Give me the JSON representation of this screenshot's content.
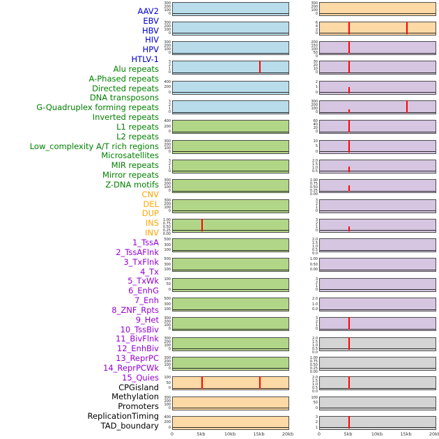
{
  "mark_color": "#ff0000",
  "group_styles": {
    "virus": {
      "label_color": "#0000cd",
      "panel_fill": "#b9dcea"
    },
    "repeat": {
      "label_color": "#008000",
      "panel_fill": "#b2d687"
    },
    "structural_variant": {
      "label_color": "#ffa500",
      "panel_fill": "#fdd9a6"
    },
    "chromatin_state": {
      "label_color": "#9400d3",
      "panel_fill": "#d6c6e1"
    },
    "other": {
      "label_color": "#000000",
      "panel_fill": "#d4d4d4"
    }
  },
  "chart_data": {
    "type": "line",
    "description": "44 genomic feature density tracks over a 20kb window, drawn as small-multiple panels in two columns (column-major: tracks 1-22 left, 23-44 right). Flat black baseline at 0 with red vertical marks where features occur.",
    "columns": 2,
    "rows_per_column": 22,
    "x_range_kb": [
      0,
      20
    ],
    "x_ticks": [
      "0",
      "5kb",
      "10kb",
      "15kb",
      "20kb"
    ],
    "baseline_value": 0,
    "tracks": [
      {
        "label": "AAV2",
        "group": "virus",
        "y_ticks": [
          "300",
          "200",
          "100",
          "0"
        ],
        "marks_kb": []
      },
      {
        "label": "EBV",
        "group": "virus",
        "y_ticks": [
          "300",
          "200",
          "100",
          "0"
        ],
        "marks_kb": []
      },
      {
        "label": "HBV",
        "group": "virus",
        "y_ticks": [
          "300",
          "200",
          "100",
          "0"
        ],
        "marks_kb": []
      },
      {
        "label": "HIV",
        "group": "virus",
        "y_ticks": [
          "3",
          "2",
          "1",
          "0"
        ],
        "marks_kb": [
          {
            "kb": 15,
            "rel_height": 1.0
          }
        ]
      },
      {
        "label": "HPV",
        "group": "virus",
        "y_ticks": [
          "400",
          "200",
          "0"
        ],
        "marks_kb": []
      },
      {
        "label": "HTLV-1",
        "group": "virus",
        "y_ticks": [
          "3",
          "2",
          "1",
          "0"
        ],
        "marks_kb": []
      },
      {
        "label": "Alu repeats",
        "group": "repeat",
        "y_ticks": [
          "400",
          "200",
          "0"
        ],
        "marks_kb": []
      },
      {
        "label": "A-Phased repeats",
        "group": "repeat",
        "y_ticks": [
          "300",
          "200",
          "100",
          "0"
        ],
        "marks_kb": []
      },
      {
        "label": "Directed repeats",
        "group": "repeat",
        "y_ticks": [
          "3",
          "2",
          "1",
          "0"
        ],
        "marks_kb": []
      },
      {
        "label": "DNA transposons",
        "group": "repeat",
        "y_ticks": [
          "300",
          "200",
          "100",
          "0"
        ],
        "marks_kb": []
      },
      {
        "label": "G-Quadruplex forming repeats",
        "group": "repeat",
        "y_ticks": [
          "300",
          "200",
          "100",
          "0"
        ],
        "marks_kb": []
      },
      {
        "label": "Inverted repeats",
        "group": "repeat",
        "y_ticks": [
          "1.00",
          "0.75",
          "0.50",
          "0.25",
          "0.00"
        ],
        "marks_kb": [
          {
            "kb": 5,
            "rel_height": 1.0
          }
        ]
      },
      {
        "label": "L1 repeats",
        "group": "repeat",
        "y_ticks": [
          "500",
          "300",
          "100"
        ],
        "marks_kb": []
      },
      {
        "label": "L2 repeats",
        "group": "repeat",
        "y_ticks": [
          "500",
          "300",
          "100"
        ],
        "marks_kb": []
      },
      {
        "label": "Low_complexity A/T rich regions",
        "group": "repeat",
        "y_ticks": [
          "100",
          "50",
          "0"
        ],
        "marks_kb": []
      },
      {
        "label": "Microsatellites",
        "group": "repeat",
        "y_ticks": [
          "500",
          "300",
          "100"
        ],
        "marks_kb": []
      },
      {
        "label": "MIR repeats",
        "group": "repeat",
        "y_ticks": [
          "300",
          "200",
          "100",
          "0"
        ],
        "marks_kb": []
      },
      {
        "label": "Mirror repeats",
        "group": "repeat",
        "y_ticks": [
          "300",
          "200",
          "100",
          "0"
        ],
        "marks_kb": []
      },
      {
        "label": "Z-DNA motifs",
        "group": "repeat",
        "y_ticks": [
          "300",
          "200",
          "100",
          "0"
        ],
        "marks_kb": []
      },
      {
        "label": "CNV",
        "group": "structural_variant",
        "y_ticks": [
          "100",
          "50",
          "0"
        ],
        "marks_kb": [
          {
            "kb": 5,
            "rel_height": 1.0
          },
          {
            "kb": 15,
            "rel_height": 1.0
          }
        ]
      },
      {
        "label": "DEL",
        "group": "structural_variant",
        "y_ticks": [
          "300",
          "200",
          "100",
          "0"
        ],
        "marks_kb": []
      },
      {
        "label": "DUP",
        "group": "structural_variant",
        "y_ticks": [
          "400",
          "200",
          "0"
        ],
        "marks_kb": []
      },
      {
        "label": "INS",
        "group": "structural_variant",
        "y_ticks": [
          "300",
          "200",
          "100",
          "0"
        ],
        "marks_kb": []
      },
      {
        "label": "INV",
        "group": "structural_variant",
        "y_ticks": [
          "6",
          "4",
          "2",
          "0"
        ],
        "marks_kb": [
          {
            "kb": 5,
            "rel_height": 1.0
          },
          {
            "kb": 15,
            "rel_height": 1.0
          }
        ]
      },
      {
        "label": "1_TssA",
        "group": "chromatin_state",
        "y_ticks": [
          "200",
          "150",
          "100",
          "50",
          "0"
        ],
        "marks_kb": [
          {
            "kb": 5,
            "rel_height": 1.0
          }
        ]
      },
      {
        "label": "2_TssAFlnk",
        "group": "chromatin_state",
        "y_ticks": [
          "30",
          "20",
          "10",
          "0"
        ],
        "marks_kb": [
          {
            "kb": 5,
            "rel_height": 1.0
          }
        ]
      },
      {
        "label": "3_TxFlnk",
        "group": "chromatin_state",
        "y_ticks": [
          "2",
          "1",
          "0"
        ],
        "marks_kb": [
          {
            "kb": 5,
            "rel_height": 0.5
          }
        ]
      },
      {
        "label": "4_Tx",
        "group": "chromatin_state",
        "y_ticks": [
          "300",
          "200",
          "100",
          "0"
        ],
        "marks_kb": [
          {
            "kb": 5,
            "rel_height": 0.3
          },
          {
            "kb": 15,
            "rel_height": 1.0
          }
        ]
      },
      {
        "label": "5_TxWk",
        "group": "chromatin_state",
        "y_ticks": [
          "60",
          "40",
          "20",
          "0"
        ],
        "marks_kb": [
          {
            "kb": 5,
            "rel_height": 1.0
          }
        ]
      },
      {
        "label": "6_EnhG",
        "group": "chromatin_state",
        "y_ticks": [
          "10",
          "5",
          "0"
        ],
        "marks_kb": [
          {
            "kb": 5,
            "rel_height": 1.0
          }
        ]
      },
      {
        "label": "7_Enh",
        "group": "chromatin_state",
        "y_ticks": [
          "2.0",
          "1.5",
          "1.0",
          "0.5"
        ],
        "marks_kb": [
          {
            "kb": 5,
            "rel_height": 0.45
          }
        ]
      },
      {
        "label": "8_ZNF_Rpts",
        "group": "chromatin_state",
        "y_ticks": [
          "1.00",
          "0.75",
          "0.50",
          "0.25",
          "0.00"
        ],
        "marks_kb": [
          {
            "kb": 5,
            "rel_height": 0.5
          }
        ]
      },
      {
        "label": "9_Het",
        "group": "chromatin_state",
        "y_ticks": [
          "3",
          "2",
          "1",
          "0"
        ],
        "marks_kb": []
      },
      {
        "label": "10_TssBiv",
        "group": "chromatin_state",
        "y_ticks": [
          "3",
          "2",
          "1",
          "0"
        ],
        "marks_kb": [
          {
            "kb": 5,
            "rel_height": 0.4
          }
        ]
      },
      {
        "label": "11_BivFlnk",
        "group": "chromatin_state",
        "y_ticks": [
          "2.0",
          "1.5",
          "1.0",
          "0.5",
          "0.0"
        ],
        "marks_kb": []
      },
      {
        "label": "12_EnhBiv",
        "group": "chromatin_state",
        "y_ticks": [
          "1.00",
          "0.50",
          "0.00"
        ],
        "marks_kb": []
      },
      {
        "label": "13_ReprPC",
        "group": "chromatin_state",
        "y_ticks": [
          "3",
          "2",
          "1",
          "0"
        ],
        "marks_kb": []
      },
      {
        "label": "14_ReprPCWk",
        "group": "chromatin_state",
        "y_ticks": [
          "2.0",
          "1.0",
          "0.0"
        ],
        "marks_kb": []
      },
      {
        "label": "15_Quies",
        "group": "chromatin_state",
        "y_ticks": [
          "3",
          "2",
          "1",
          "0"
        ],
        "marks_kb": [
          {
            "kb": 5,
            "rel_height": 1.0
          }
        ]
      },
      {
        "label": "CPGisland",
        "group": "other",
        "y_ticks": [
          "2.0",
          "1.5",
          "1.0",
          "0.5",
          "0.0"
        ],
        "marks_kb": [
          {
            "kb": 5,
            "rel_height": 1.0
          }
        ]
      },
      {
        "label": "Methylation",
        "group": "other",
        "y_ticks": [
          "1.00",
          "0.75",
          "0.50",
          "0.25",
          "0.00"
        ],
        "marks_kb": []
      },
      {
        "label": "Promoters",
        "group": "other",
        "y_ticks": [
          "2.0",
          "1.5",
          "1.0",
          "0.5",
          "0.0"
        ],
        "marks_kb": [
          {
            "kb": 5,
            "rel_height": 1.0
          }
        ]
      },
      {
        "label": "ReplicationTiming",
        "group": "other",
        "y_ticks": [
          "100",
          "50",
          "0"
        ],
        "marks_kb": []
      },
      {
        "label": "TAD_boundary",
        "group": "other",
        "y_ticks": [
          "3",
          "2",
          "1"
        ],
        "marks_kb": [
          {
            "kb": 5,
            "rel_height": 1.0
          }
        ]
      }
    ]
  }
}
